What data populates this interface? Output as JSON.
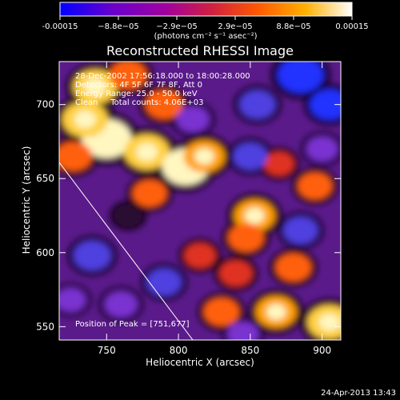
{
  "chart_data": {
    "type": "heatmap",
    "title": "Reconstructed RHESSI Image",
    "xlabel": "Heliocentric X (arcsec)",
    "ylabel": "Heliocentric Y (arcsec)",
    "xlim": [
      717,
      913
    ],
    "ylim": [
      541,
      729
    ],
    "xticks": [
      750,
      800,
      850,
      900
    ],
    "yticks": [
      550,
      600,
      650,
      700
    ],
    "colorbar": {
      "units_label": "(photons cm⁻² s⁻¹ asec⁻²)",
      "range": [
        -0.00015,
        0.00015
      ],
      "tick_labels": [
        "-0.00015",
        "−8.8e−05",
        "−2.9e−05",
        "2.9e−05",
        "8.8e−05",
        "0.00015"
      ],
      "colors": [
        "#0000ff",
        "#6a00cc",
        "#a000a0",
        "#d02040",
        "#ff5a00",
        "#ffb000",
        "#ffffff"
      ]
    },
    "info_lines": [
      "28-Dec-2002 17:56:18.000 to 18:00:28.000",
      "Detectors: 4F 5F 6F 7F 8F, Att 0",
      "Energy Range: 25.0 - 50.0 keV",
      "Clean     Total counts: 4.06E+03"
    ],
    "peak_label": "Position of Peak = [751,677]",
    "peak_position": [
      751,
      677
    ],
    "limb_line": [
      [
        717,
        661
      ],
      [
        810,
        541
      ]
    ],
    "hotspots": [
      {
        "x": 750,
        "y": 677,
        "v": 1.0
      },
      {
        "x": 735,
        "y": 690,
        "v": 0.85
      },
      {
        "x": 742,
        "y": 712,
        "v": 0.8
      },
      {
        "x": 778,
        "y": 668,
        "v": 0.85
      },
      {
        "x": 805,
        "y": 658,
        "v": 0.9
      },
      {
        "x": 818,
        "y": 665,
        "v": 0.7
      },
      {
        "x": 790,
        "y": 700,
        "v": 0.55
      },
      {
        "x": 727,
        "y": 665,
        "v": 0.55
      },
      {
        "x": 765,
        "y": 720,
        "v": 0.55
      },
      {
        "x": 780,
        "y": 640,
        "v": 0.45
      },
      {
        "x": 853,
        "y": 625,
        "v": 0.7
      },
      {
        "x": 847,
        "y": 610,
        "v": 0.5
      },
      {
        "x": 868,
        "y": 560,
        "v": 0.7
      },
      {
        "x": 905,
        "y": 553,
        "v": 0.8
      },
      {
        "x": 880,
        "y": 590,
        "v": 0.5
      },
      {
        "x": 895,
        "y": 645,
        "v": 0.45
      },
      {
        "x": 840,
        "y": 586,
        "v": 0.4
      },
      {
        "x": 830,
        "y": 560,
        "v": 0.5
      },
      {
        "x": 815,
        "y": 598,
        "v": 0.35
      },
      {
        "x": 870,
        "y": 660,
        "v": 0.3
      },
      {
        "x": 810,
        "y": 690,
        "v": -0.4
      },
      {
        "x": 855,
        "y": 700,
        "v": -0.5
      },
      {
        "x": 885,
        "y": 720,
        "v": -0.85
      },
      {
        "x": 905,
        "y": 700,
        "v": -0.6
      },
      {
        "x": 900,
        "y": 670,
        "v": -0.35
      },
      {
        "x": 850,
        "y": 665,
        "v": -0.45
      },
      {
        "x": 885,
        "y": 615,
        "v": -0.45
      },
      {
        "x": 740,
        "y": 598,
        "v": -0.55
      },
      {
        "x": 760,
        "y": 565,
        "v": -0.4
      },
      {
        "x": 790,
        "y": 580,
        "v": -0.45
      },
      {
        "x": 725,
        "y": 568,
        "v": -0.3
      },
      {
        "x": 765,
        "y": 625,
        "v": -0.2
      },
      {
        "x": 845,
        "y": 545,
        "v": -0.35
      }
    ]
  },
  "footer": {
    "timestamp": "24-Apr-2013 13:43"
  }
}
